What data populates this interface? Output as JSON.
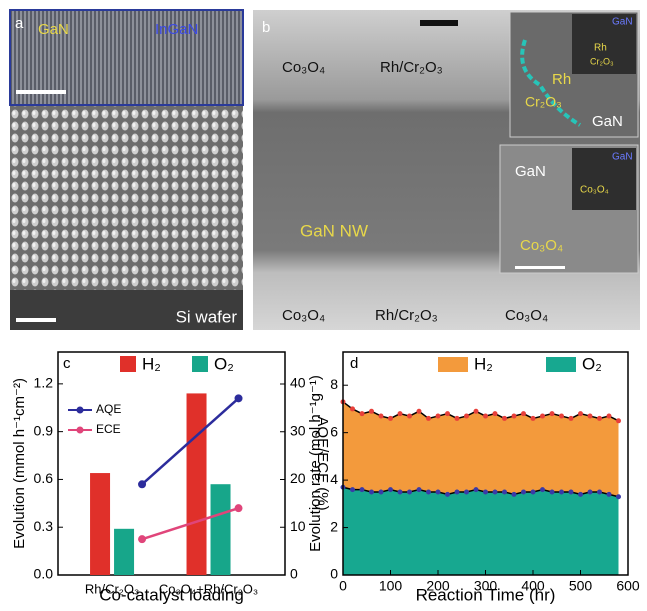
{
  "panel_a": {
    "label": "a",
    "top_labels": [
      "GaN",
      "InGaN"
    ],
    "bottom_label": "Si wafer"
  },
  "panel_b": {
    "label": "b",
    "labels": [
      "Co₃O₄",
      "Rh/Cr₂O₃",
      "GaN NW",
      "Co₃O₄",
      "Rh/Cr₂O₃",
      "Co₃O₄"
    ],
    "inset_top": [
      "Rh",
      "Cr₂O₃",
      "GaN",
      "GaN",
      "Rh",
      "Cr₂O₃"
    ],
    "inset_bottom": [
      "GaN",
      "Co₃O₄",
      "GaN",
      "Co₃O₄"
    ]
  },
  "chart_data": [
    {
      "type": "bar",
      "label": "c",
      "categories": [
        "Rh/Cr₂O₃",
        "Co₃O₄+Rh/Cr₂O₃"
      ],
      "xlabel": "Co-catalyst loading",
      "ylabel": "Evolution (mmol h⁻¹cm⁻²)",
      "y2label": "AQE/ECE (%)",
      "series": [
        {
          "name": "H₂",
          "color": "#e0302a",
          "values": [
            0.64,
            1.14
          ]
        },
        {
          "name": "O₂",
          "color": "#17a68a",
          "values": [
            0.29,
            0.57
          ]
        },
        {
          "name": "AQE",
          "color": "#2c2c9c",
          "axis": "y2",
          "values": [
            19,
            37
          ]
        },
        {
          "name": "ECE",
          "color": "#e0457a",
          "axis": "y2",
          "values": [
            7.5,
            14
          ]
        }
      ],
      "ylim": [
        0,
        1.4
      ],
      "yticks": [
        {
          "value": 0,
          "label": "0.0"
        },
        0.3,
        0.6,
        0.9,
        1.2
      ],
      "y2lim": [
        0,
        46.7
      ],
      "y2ticks": [
        0,
        10,
        20,
        30,
        40
      ]
    },
    {
      "type": "area",
      "label": "d",
      "xlabel": "Reaction Time (hr)",
      "ylabel": "Evolution rate (mol h⁻¹g⁻¹)",
      "x": [
        0,
        20,
        40,
        60,
        80,
        100,
        120,
        140,
        160,
        180,
        200,
        220,
        240,
        260,
        280,
        300,
        320,
        340,
        360,
        380,
        400,
        420,
        440,
        460,
        480,
        500,
        520,
        540,
        560,
        580
      ],
      "series": [
        {
          "name": "H₂",
          "color": "#f39a3c",
          "marker_color": "#e8403a",
          "line_color": "#000000",
          "values": [
            7.3,
            7.0,
            6.8,
            6.9,
            6.7,
            6.6,
            6.8,
            6.7,
            6.9,
            6.6,
            6.7,
            6.8,
            6.6,
            6.7,
            6.9,
            6.7,
            6.8,
            6.6,
            6.7,
            6.8,
            6.6,
            6.7,
            6.8,
            6.7,
            6.6,
            6.8,
            6.7,
            6.6,
            6.7,
            6.5
          ]
        },
        {
          "name": "O₂",
          "color": "#17a890",
          "marker_color": "#3a3aa8",
          "line_color": "#000000",
          "values": [
            3.7,
            3.6,
            3.6,
            3.5,
            3.5,
            3.6,
            3.5,
            3.5,
            3.6,
            3.5,
            3.5,
            3.4,
            3.5,
            3.5,
            3.6,
            3.5,
            3.5,
            3.5,
            3.4,
            3.5,
            3.5,
            3.6,
            3.5,
            3.5,
            3.5,
            3.4,
            3.5,
            3.5,
            3.4,
            3.3
          ]
        }
      ],
      "xlim": [
        0,
        600
      ],
      "xticks": [
        0,
        100,
        200,
        300,
        400,
        500,
        600
      ],
      "ylim": [
        0,
        9.4
      ],
      "yticks": [
        0,
        2,
        4,
        6,
        8
      ]
    }
  ]
}
